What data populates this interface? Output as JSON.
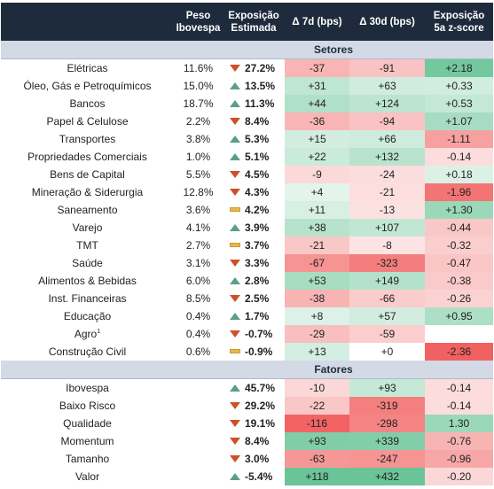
{
  "headers": {
    "peso": [
      "Peso",
      "Ibovespa"
    ],
    "exposicao": [
      "Exposição",
      "Estimada"
    ],
    "d7": "Δ 7d (bps)",
    "d30": "Δ 30d (bps)",
    "z": [
      "Exposição",
      "5a z-score"
    ]
  },
  "sections": [
    {
      "title": "Setores",
      "rows": [
        {
          "name": "Elétricas",
          "weight": "11.6%",
          "dir": "down",
          "exposure": "27.2%",
          "d7": "-37",
          "d30": "-91",
          "z": "+2.18"
        },
        {
          "name": "Óleo, Gás e Petroquímicos",
          "weight": "15.0%",
          "dir": "up",
          "exposure": "13.5%",
          "d7": "+31",
          "d30": "+63",
          "z": "+0.33"
        },
        {
          "name": "Bancos",
          "weight": "18.7%",
          "dir": "up",
          "exposure": "11.3%",
          "d7": "+44",
          "d30": "+124",
          "z": "+0.53"
        },
        {
          "name": "Papel & Celulose",
          "weight": "2.2%",
          "dir": "down",
          "exposure": "8.4%",
          "d7": "-36",
          "d30": "-94",
          "z": "+1.07"
        },
        {
          "name": "Transportes",
          "weight": "3.8%",
          "dir": "up",
          "exposure": "5.3%",
          "d7": "+15",
          "d30": "+66",
          "z": "-1.11"
        },
        {
          "name": "Propriedades Comerciais",
          "weight": "1.0%",
          "dir": "up",
          "exposure": "5.1%",
          "d7": "+22",
          "d30": "+132",
          "z": "-0.14"
        },
        {
          "name": "Bens de Capital",
          "weight": "5.5%",
          "dir": "down",
          "exposure": "4.5%",
          "d7": "-9",
          "d30": "-24",
          "z": "+0.18"
        },
        {
          "name": "Mineração & Siderurgia",
          "weight": "12.8%",
          "dir": "down",
          "exposure": "4.3%",
          "d7": "+4",
          "d30": "-21",
          "z": "-1.96"
        },
        {
          "name": "Saneamento",
          "weight": "3.6%",
          "dir": "flat",
          "exposure": "4.2%",
          "d7": "+11",
          "d30": "-13",
          "z": "+1.30"
        },
        {
          "name": "Varejo",
          "weight": "4.1%",
          "dir": "up",
          "exposure": "3.9%",
          "d7": "+38",
          "d30": "+107",
          "z": "-0.44"
        },
        {
          "name": "TMT",
          "weight": "2.7%",
          "dir": "flat",
          "exposure": "3.7%",
          "d7": "-21",
          "d30": "-8",
          "z": "-0.32"
        },
        {
          "name": "Saúde",
          "weight": "3.1%",
          "dir": "down",
          "exposure": "3.3%",
          "d7": "-67",
          "d30": "-323",
          "z": "-0.47"
        },
        {
          "name": "Alimentos & Bebidas",
          "weight": "6.0%",
          "dir": "up",
          "exposure": "2.8%",
          "d7": "+53",
          "d30": "+149",
          "z": "-0.38"
        },
        {
          "name": "Inst. Financeiras",
          "weight": "8.5%",
          "dir": "down",
          "exposure": "2.5%",
          "d7": "-38",
          "d30": "-66",
          "z": "-0.26"
        },
        {
          "name": "Educação",
          "weight": "0.4%",
          "dir": "up",
          "exposure": "1.7%",
          "d7": "+8",
          "d30": "+57",
          "z": "+0.95"
        },
        {
          "name": "Agro",
          "sup": "1",
          "weight": "0.4%",
          "dir": "down",
          "exposure": "-0.7%",
          "d7": "-29",
          "d30": "-59",
          "z": ""
        },
        {
          "name": "Construção Civil",
          "weight": "0.6%",
          "dir": "flat",
          "exposure": "-0.9%",
          "d7": "+13",
          "d30": "+0",
          "z": "-2.36"
        }
      ]
    },
    {
      "title": "Fatores",
      "rows": [
        {
          "name": "Ibovespa",
          "weight": "",
          "dir": "up",
          "exposure": "45.7%",
          "d7": "-10",
          "d30": "+93",
          "z": "-0.14"
        },
        {
          "name": "Baixo Risco",
          "weight": "",
          "dir": "down",
          "exposure": "29.2%",
          "d7": "-22",
          "d30": "-319",
          "z": "-0.14"
        },
        {
          "name": "Qualidade",
          "weight": "",
          "dir": "down",
          "exposure": "19.1%",
          "d7": "-116",
          "d30": "-298",
          "z": "1.30"
        },
        {
          "name": "Momentum",
          "weight": "",
          "dir": "down",
          "exposure": "8.4%",
          "d7": "+93",
          "d30": "+339",
          "z": "-0.76"
        },
        {
          "name": "Tamanho",
          "weight": "",
          "dir": "down",
          "exposure": "3.0%",
          "d7": "-63",
          "d30": "-247",
          "z": "-0.96"
        },
        {
          "name": "Valor",
          "weight": "",
          "dir": "up",
          "exposure": "-5.4%",
          "d7": "+118",
          "d30": "+432",
          "z": "-0.20"
        }
      ]
    }
  ],
  "colors": {
    "header_bg": "#1e2b3c",
    "section_bg": "#d3dae6",
    "positive": "#5fbf8e",
    "negative": "#f24a4a",
    "arrow_up": "#5e9e82",
    "arrow_down": "#cf4f2c",
    "flat": "#e8b74a"
  }
}
